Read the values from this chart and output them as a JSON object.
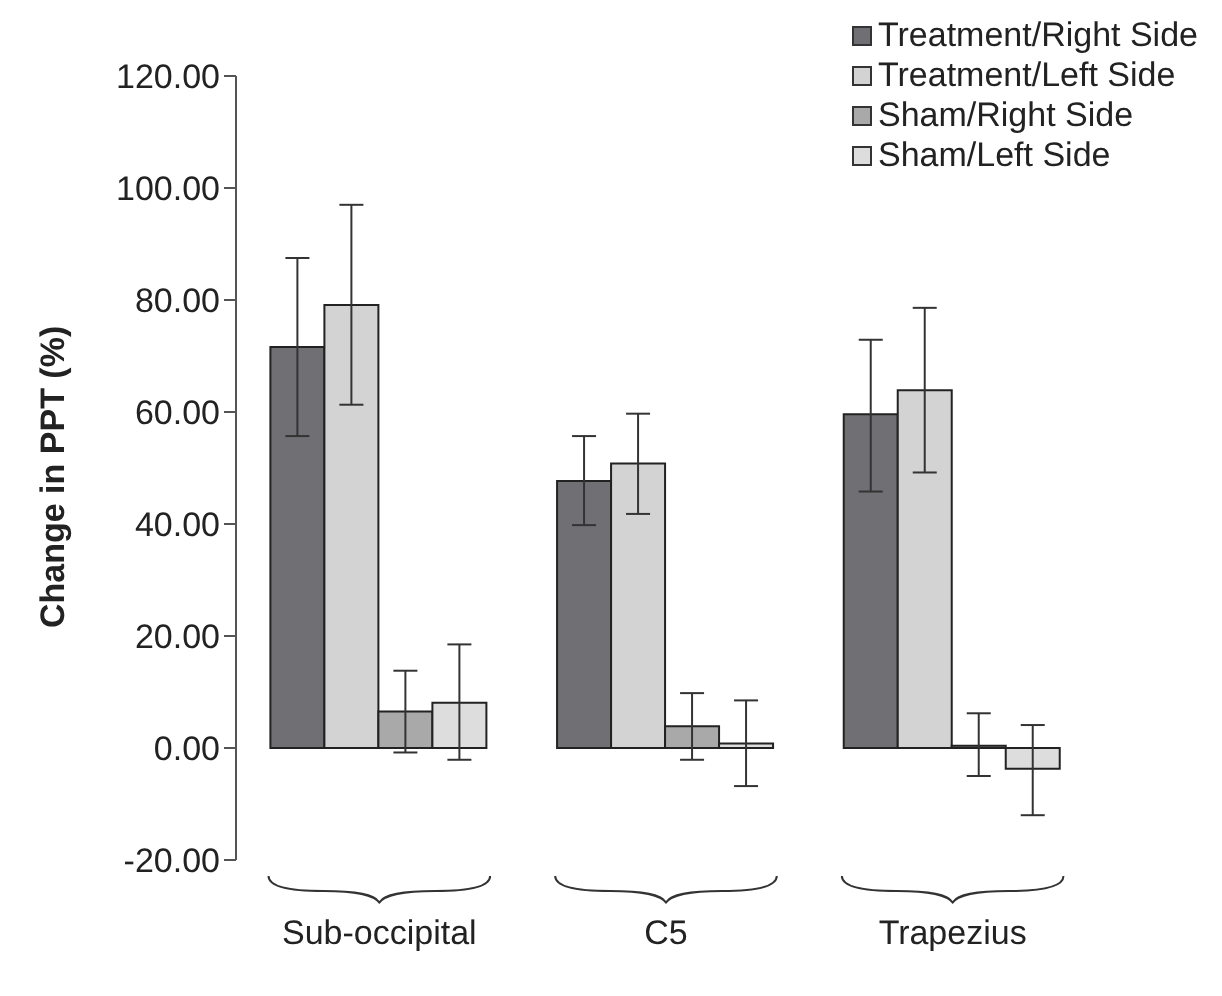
{
  "chart_data": {
    "type": "bar",
    "ylabel": "Change in PPT (%)",
    "categories": [
      "Sub-occipital",
      "C5",
      "Trapezius"
    ],
    "series": [
      {
        "name": "Treatment/Right Side",
        "color": "#707074",
        "values": [
          71.6,
          47.7,
          59.6
        ],
        "errors": [
          [
            55.7,
            87.5
          ],
          [
            39.8,
            55.7
          ],
          [
            45.8,
            72.9
          ]
        ]
      },
      {
        "name": "Treatment/Left Side",
        "color": "#d3d3d3",
        "values": [
          79.1,
          50.8,
          63.9
        ],
        "errors": [
          [
            61.3,
            97.0
          ],
          [
            41.8,
            59.7
          ],
          [
            49.2,
            78.6
          ]
        ]
      },
      {
        "name": "Sham/Right Side",
        "color": "#a9a9a9",
        "values": [
          6.5,
          3.9,
          0.4
        ],
        "errors": [
          [
            -0.8,
            13.8
          ],
          [
            -2.1,
            9.8
          ],
          [
            -5.0,
            6.2
          ]
        ]
      },
      {
        "name": "Sham/Left Side",
        "color": "#dddddd",
        "values": [
          8.1,
          0.8,
          -3.7
        ],
        "errors": [
          [
            -2.1,
            18.5
          ],
          [
            -6.8,
            8.5
          ],
          [
            -12.0,
            4.1
          ]
        ]
      }
    ],
    "ylim": [
      -20,
      120
    ],
    "yticks": [
      {
        "value": -20,
        "label": "-20.00"
      },
      {
        "value": 0,
        "label": "0.00"
      },
      {
        "value": 20,
        "label": "20.00"
      },
      {
        "value": 40,
        "label": "40.00"
      },
      {
        "value": 60,
        "label": "60.00"
      },
      {
        "value": 80,
        "label": "80.00"
      },
      {
        "value": 100,
        "label": "100.00"
      },
      {
        "value": 120,
        "label": "120.00"
      }
    ],
    "grid": false,
    "legend": "top right"
  }
}
